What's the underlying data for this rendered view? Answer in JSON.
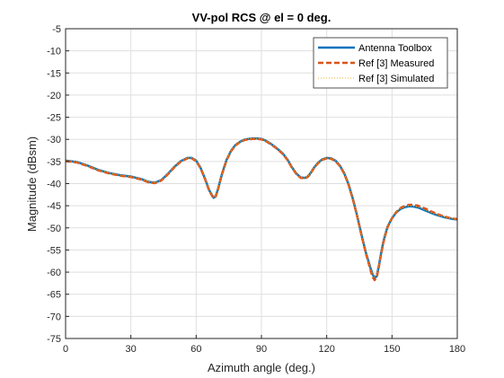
{
  "chart_data": {
    "type": "line",
    "title": "VV-pol RCS @ el = 0 deg.",
    "xlabel": "Azimuth angle (deg.)",
    "ylabel": "Magnitude (dBsm)",
    "xlim": [
      0,
      180
    ],
    "ylim": [
      -75,
      -5
    ],
    "xticks": [
      0,
      30,
      60,
      90,
      120,
      150,
      180
    ],
    "yticks": [
      -75,
      -70,
      -65,
      -60,
      -55,
      -50,
      -45,
      -40,
      -35,
      -30,
      -25,
      -20,
      -15,
      -10,
      -5
    ],
    "grid": true,
    "legend_position": "top-right",
    "x": [
      0,
      5,
      10,
      15,
      20,
      25,
      30,
      35,
      38,
      41,
      44,
      47,
      50,
      53,
      56,
      58,
      60,
      62,
      64,
      66,
      68,
      69,
      70,
      71,
      72,
      74,
      76,
      78,
      80,
      82,
      84,
      86,
      88,
      90,
      92,
      94,
      96,
      98,
      100,
      102,
      104,
      106,
      108,
      110,
      111,
      112,
      113,
      114,
      116,
      118,
      120,
      122,
      124,
      126,
      128,
      130,
      132,
      134,
      136,
      138,
      140,
      141,
      142,
      143,
      144,
      145,
      146,
      147,
      148,
      150,
      152,
      154,
      156,
      158,
      160,
      162,
      164,
      166,
      168,
      170,
      172,
      174,
      176,
      178,
      180
    ],
    "series": [
      {
        "name": "Antenna Toolbox",
        "color": "#0072BD",
        "style": "solid",
        "values": [
          -34.8,
          -35.1,
          -35.9,
          -36.9,
          -37.6,
          -38.1,
          -38.4,
          -39.0,
          -39.6,
          -39.8,
          -39.2,
          -37.8,
          -36.2,
          -34.9,
          -34.2,
          -34.2,
          -34.8,
          -36.4,
          -38.8,
          -41.5,
          -43.2,
          -42.8,
          -41.3,
          -39.4,
          -37.6,
          -34.6,
          -32.6,
          -31.3,
          -30.6,
          -30.1,
          -29.9,
          -29.8,
          -29.8,
          -29.9,
          -30.3,
          -30.9,
          -31.6,
          -32.4,
          -33.3,
          -34.6,
          -36.3,
          -37.7,
          -38.6,
          -38.7,
          -38.5,
          -38.0,
          -37.3,
          -36.5,
          -35.3,
          -34.5,
          -34.2,
          -34.3,
          -34.8,
          -35.9,
          -37.6,
          -40.1,
          -43.4,
          -47.3,
          -51.6,
          -55.6,
          -58.9,
          -60.4,
          -61.3,
          -60.9,
          -58.5,
          -55.7,
          -53.2,
          -51.3,
          -49.7,
          -47.8,
          -46.5,
          -45.7,
          -45.3,
          -45.1,
          -45.2,
          -45.4,
          -45.8,
          -46.2,
          -46.6,
          -47.0,
          -47.3,
          -47.6,
          -47.8,
          -48.0,
          -48.1
        ]
      },
      {
        "name": "Ref [3] Measured",
        "color": "#D95319",
        "style": "dashed",
        "values": [
          -34.9,
          -35.2,
          -36.0,
          -37.0,
          -37.7,
          -38.2,
          -38.5,
          -39.1,
          -39.7,
          -39.9,
          -39.3,
          -37.9,
          -36.3,
          -35.0,
          -34.3,
          -34.3,
          -34.9,
          -36.5,
          -38.9,
          -41.6,
          -43.3,
          -42.9,
          -41.4,
          -39.5,
          -37.7,
          -34.7,
          -32.7,
          -31.4,
          -30.7,
          -30.2,
          -30.0,
          -29.9,
          -29.9,
          -30.0,
          -30.4,
          -31.0,
          -31.7,
          -32.5,
          -33.4,
          -34.7,
          -36.4,
          -37.8,
          -38.7,
          -38.8,
          -38.6,
          -38.1,
          -37.4,
          -36.6,
          -35.4,
          -34.6,
          -34.3,
          -34.4,
          -34.9,
          -36.0,
          -37.7,
          -40.2,
          -43.5,
          -47.4,
          -51.7,
          -55.8,
          -59.3,
          -61.0,
          -61.8,
          -61.2,
          -58.7,
          -55.9,
          -53.4,
          -51.5,
          -49.8,
          -47.8,
          -46.4,
          -45.5,
          -45.0,
          -44.8,
          -44.8,
          -45.0,
          -45.4,
          -45.8,
          -46.3,
          -46.7,
          -47.1,
          -47.4,
          -47.7,
          -47.9,
          -48.0
        ]
      },
      {
        "name": "Ref [3] Simulated",
        "color": "#EDB120",
        "style": "dotted",
        "values": [
          -34.8,
          -35.1,
          -35.9,
          -36.9,
          -37.6,
          -38.1,
          -38.4,
          -39.0,
          -39.6,
          -39.8,
          -39.2,
          -37.8,
          -36.2,
          -34.9,
          -34.2,
          -34.2,
          -34.8,
          -36.4,
          -38.8,
          -41.5,
          -43.1,
          -42.8,
          -41.3,
          -39.4,
          -37.6,
          -34.6,
          -32.6,
          -31.3,
          -30.6,
          -30.1,
          -29.9,
          -29.8,
          -29.8,
          -29.9,
          -30.3,
          -30.9,
          -31.6,
          -32.4,
          -33.3,
          -34.6,
          -36.3,
          -37.7,
          -38.6,
          -38.7,
          -38.5,
          -38.0,
          -37.3,
          -36.5,
          -35.3,
          -34.5,
          -34.2,
          -34.3,
          -34.8,
          -35.9,
          -37.6,
          -40.1,
          -43.4,
          -47.3,
          -51.6,
          -55.6,
          -58.9,
          -60.3,
          -61.1,
          -60.7,
          -58.4,
          -55.6,
          -53.1,
          -51.2,
          -49.6,
          -47.7,
          -46.4,
          -45.6,
          -45.2,
          -45.0,
          -45.1,
          -45.3,
          -45.7,
          -46.1,
          -46.5,
          -46.9,
          -47.2,
          -47.5,
          -47.7,
          -47.9,
          -48.0
        ]
      }
    ]
  }
}
